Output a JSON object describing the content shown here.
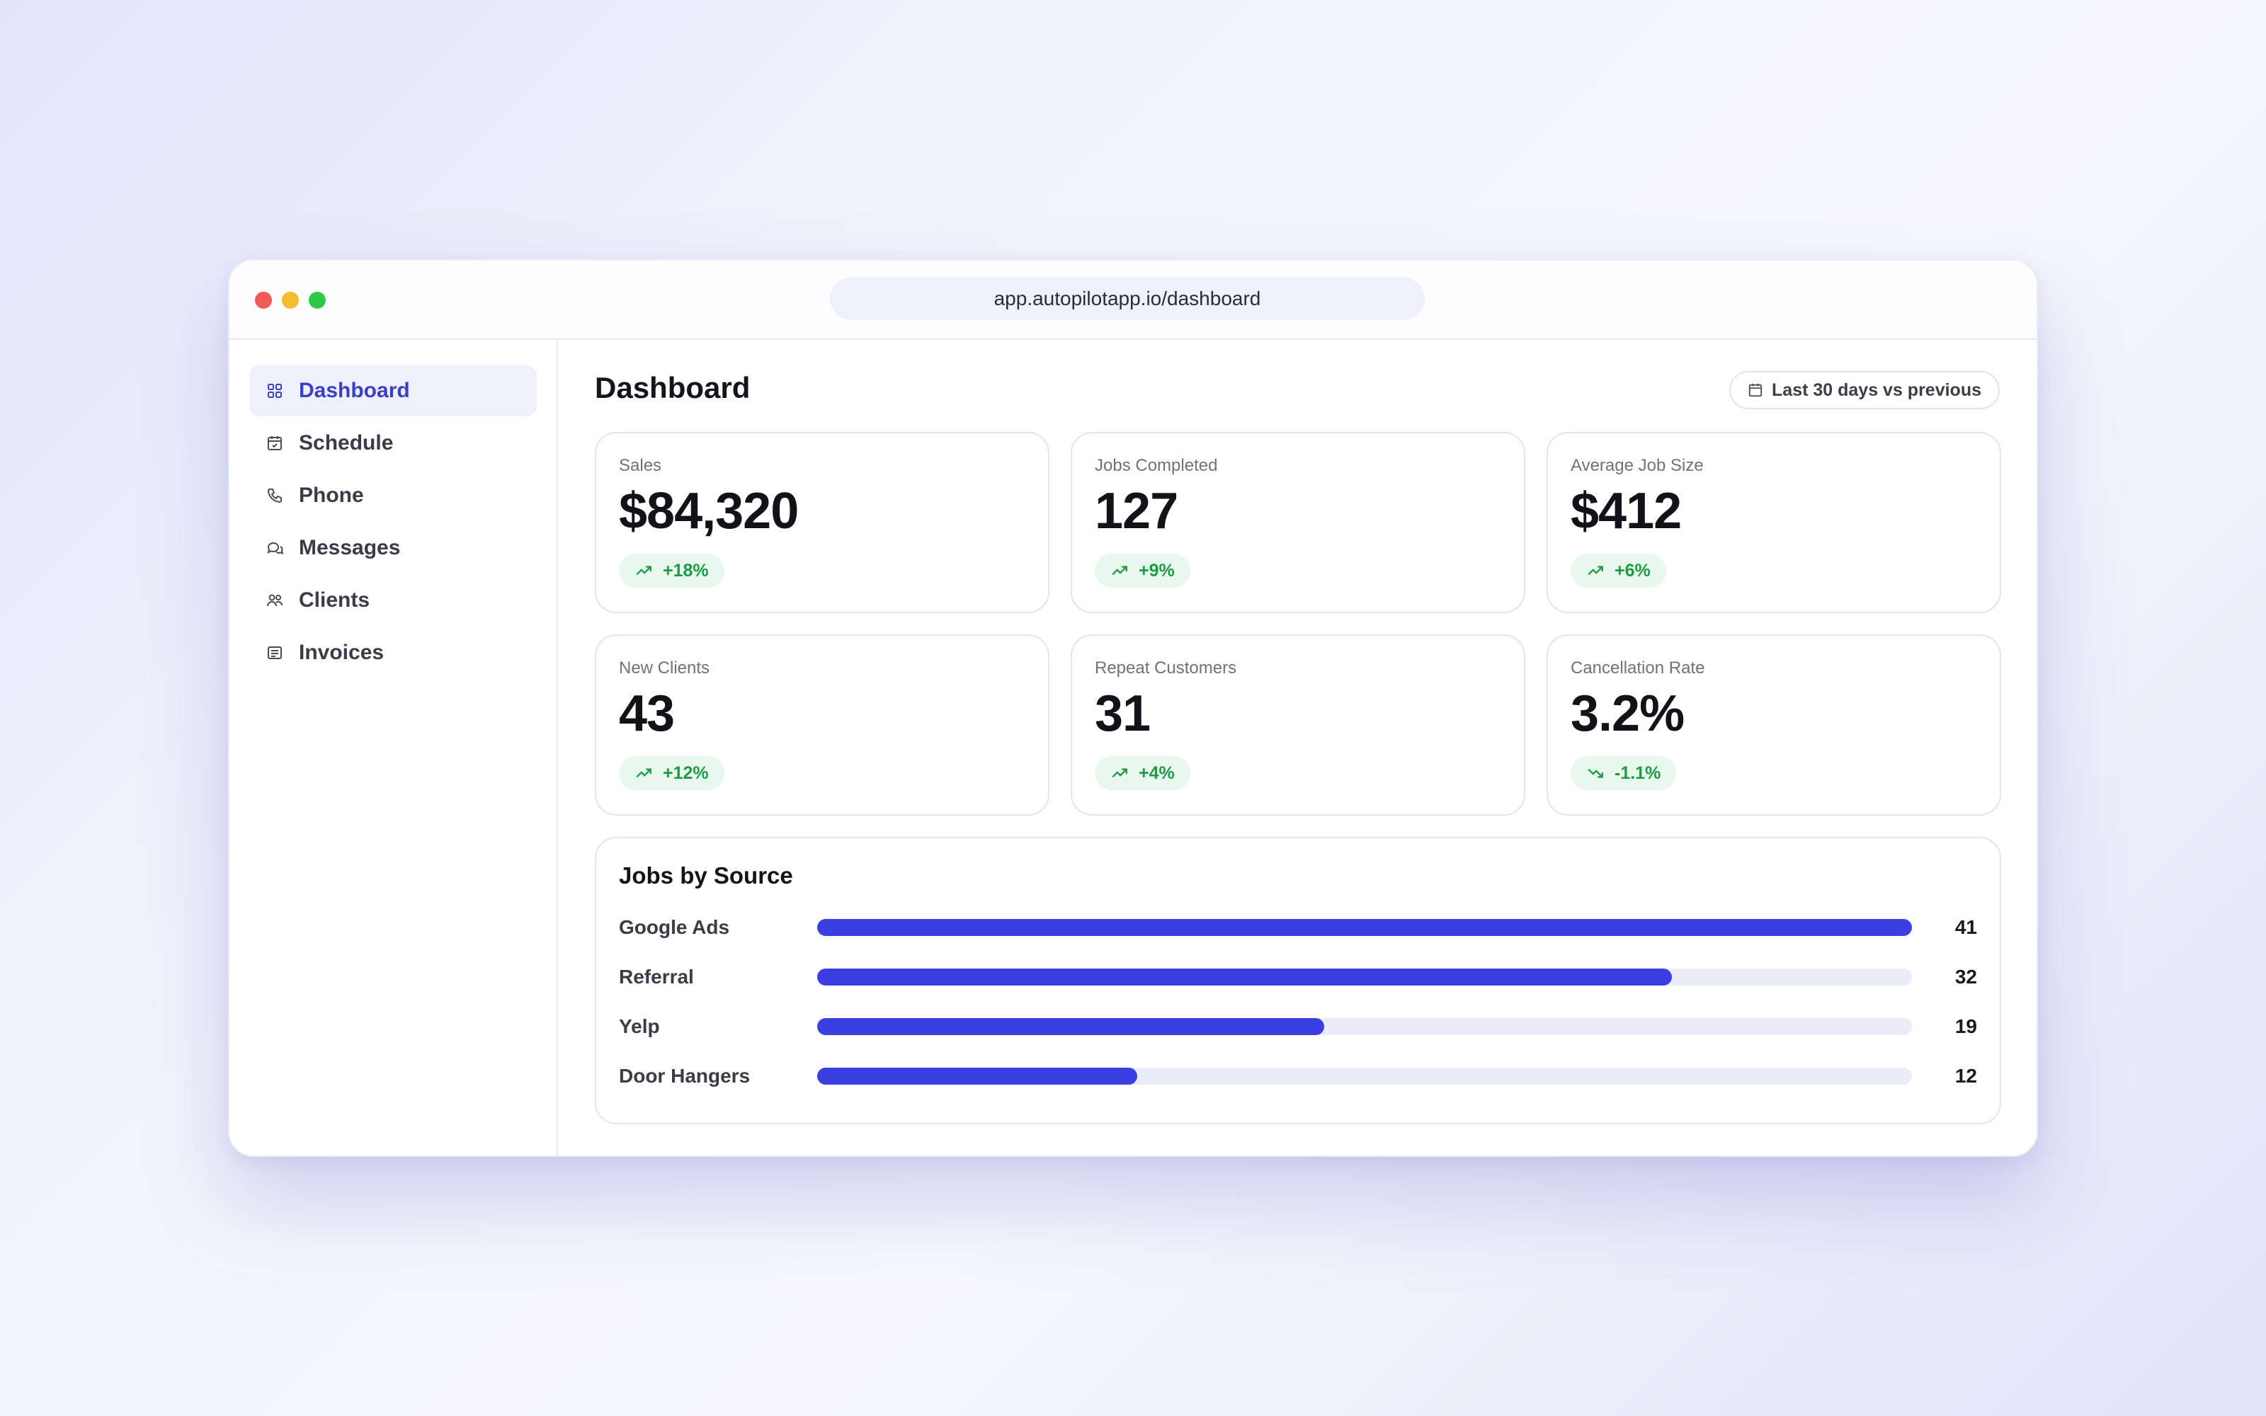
{
  "browser": {
    "url": "app.autopilotapp.io/dashboard"
  },
  "sidebar": {
    "items": [
      {
        "label": "Dashboard",
        "icon": "grid-icon",
        "active": true
      },
      {
        "label": "Schedule",
        "icon": "calendar-check-icon",
        "active": false
      },
      {
        "label": "Phone",
        "icon": "phone-icon",
        "active": false
      },
      {
        "label": "Messages",
        "icon": "chat-bubbles-icon",
        "active": false
      },
      {
        "label": "Clients",
        "icon": "users-icon",
        "active": false
      },
      {
        "label": "Invoices",
        "icon": "invoice-icon",
        "active": false
      }
    ]
  },
  "header": {
    "title": "Dashboard",
    "date_range": "Last 30 days vs previous"
  },
  "metrics": [
    {
      "label": "Sales",
      "value": "$84,320",
      "change": "+18%",
      "trend": "up"
    },
    {
      "label": "Jobs Completed",
      "value": "127",
      "change": "+9%",
      "trend": "up"
    },
    {
      "label": "Average Job Size",
      "value": "$412",
      "change": "+6%",
      "trend": "up"
    },
    {
      "label": "New Clients",
      "value": "43",
      "change": "+12%",
      "trend": "up"
    },
    {
      "label": "Repeat Customers",
      "value": "31",
      "change": "+4%",
      "trend": "up"
    },
    {
      "label": "Cancellation Rate",
      "value": "3.2%",
      "change": "-1.1%",
      "trend": "down"
    }
  ],
  "jobs_by_source": {
    "title": "Jobs by Source",
    "rows": [
      {
        "label": "Google Ads",
        "value": 41
      },
      {
        "label": "Referral",
        "value": 32
      },
      {
        "label": "Yelp",
        "value": 19
      },
      {
        "label": "Door Hangers",
        "value": 12
      }
    ],
    "max": 41
  },
  "colors": {
    "accent": "#3b3fe2",
    "positive": "#1f9a45",
    "positive_bg": "#e9f8ee"
  }
}
